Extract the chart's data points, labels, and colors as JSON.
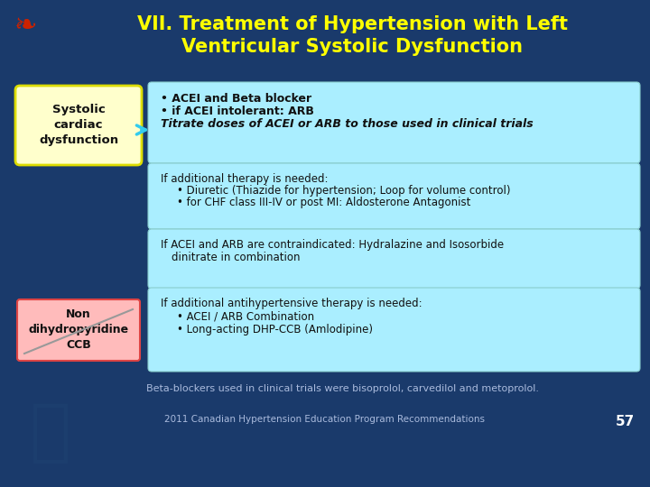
{
  "title_line1": "VII. Treatment of Hypertension with Left",
  "title_line2": "Ventricular Systolic Dysfunction",
  "title_color": "#FFFF00",
  "bg_color": "#1a3a6b",
  "box_fill_cyan": "#aaeeff",
  "box_fill_yellow": "#FFFFCC",
  "box_fill_pink": "#ffbbbb",
  "left_label1": "Systolic\ncardiac\ndysfunction",
  "left_label2": "Non\ndihydropyridine\nCCB",
  "footer_text": "Beta-blockers used in clinical trials were bisoprolol, carvedilol and metoprolol.",
  "footer2_text": "2011 Canadian Hypertension Education Program Recommendations",
  "page_number": "57",
  "arrow_color": "#33ccee",
  "text_color_dark": "#111111",
  "text_color_white": "#ffffff",
  "text_color_footer": "#aabbdd"
}
